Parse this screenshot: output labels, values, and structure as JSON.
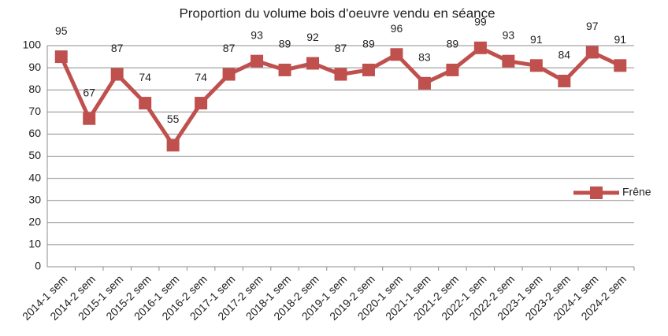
{
  "chart_data": {
    "type": "line",
    "title": "Proportion du volume bois d'oeuvre vendu en séance",
    "categories": [
      "2014-1 sem",
      "2014-2 sem",
      "2015-1 sem",
      "2015-2 sem",
      "2016-1 sem",
      "2016-2 sem",
      "2017-1 sem",
      "2017-2 sem",
      "2018-1 sem",
      "2018-2 sem",
      "2019-1 sem",
      "2019-2 sem",
      "2020-1 sem",
      "2021-1 sem",
      "2021-2 sem",
      "2022-1 sem",
      "2022-2 sem",
      "2023-1 sem",
      "2023-2 sem",
      "2024-1 sem",
      "2024-2 sem"
    ],
    "series": [
      {
        "name": "Frêne",
        "color": "#c0504d",
        "values": [
          95,
          67,
          87,
          74,
          55,
          74,
          87,
          93,
          89,
          92,
          87,
          89,
          96,
          83,
          89,
          99,
          93,
          91,
          84,
          97,
          91
        ]
      }
    ],
    "ylim": [
      0,
      100
    ],
    "yticks": [
      0,
      10,
      20,
      30,
      40,
      50,
      60,
      70,
      80,
      90,
      100
    ],
    "grid": true,
    "legend": "right"
  }
}
